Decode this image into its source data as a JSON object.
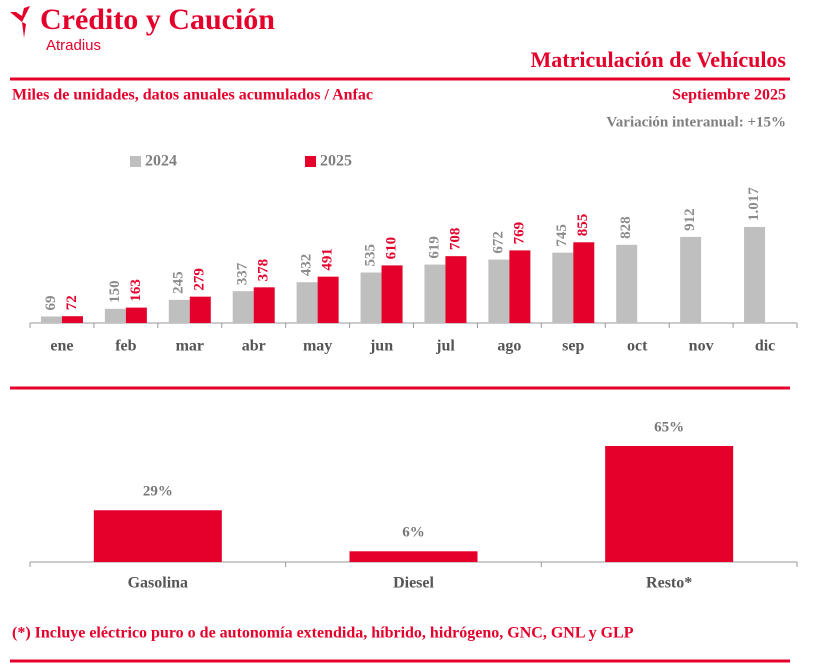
{
  "header": {
    "brand": "Crédito y Caución",
    "sub_brand": "Atradius",
    "title": "Matriculación de Vehículos",
    "subtitle": "Miles de unidades, datos anuales acumulados / Anfac",
    "date": "Septiembre 2025",
    "note": "Variación interanual: +15%"
  },
  "chart_data": [
    {
      "type": "bar",
      "categories": [
        "ene",
        "feb",
        "mar",
        "abr",
        "may",
        "jun",
        "jul",
        "ago",
        "sep",
        "oct",
        "nov",
        "dic"
      ],
      "series": [
        {
          "name": "2024",
          "color": "#bfbfbf",
          "values": [
            69,
            150,
            245,
            337,
            432,
            535,
            619,
            672,
            745,
            828,
            912,
            1017
          ],
          "value_labels": [
            "69",
            "150",
            "245",
            "337",
            "432",
            "535",
            "619",
            "672",
            "745",
            "828",
            "912",
            "1.017"
          ]
        },
        {
          "name": "2025",
          "color": "#e4002b",
          "values": [
            72,
            163,
            279,
            378,
            491,
            610,
            708,
            769,
            855,
            null,
            null,
            null
          ]
        }
      ],
      "legend": "top-left"
    },
    {
      "type": "bar",
      "categories": [
        "Gasolina",
        "Diesel",
        "Resto*"
      ],
      "values": [
        29,
        6,
        65
      ],
      "value_labels": [
        "29%",
        "6%",
        "65%"
      ],
      "color": "#e4002b"
    }
  ],
  "footnote": "(*) Incluye eléctrico puro o de autonomía extendida, híbrido, hidrógeno, GNC, GNL y GLP"
}
